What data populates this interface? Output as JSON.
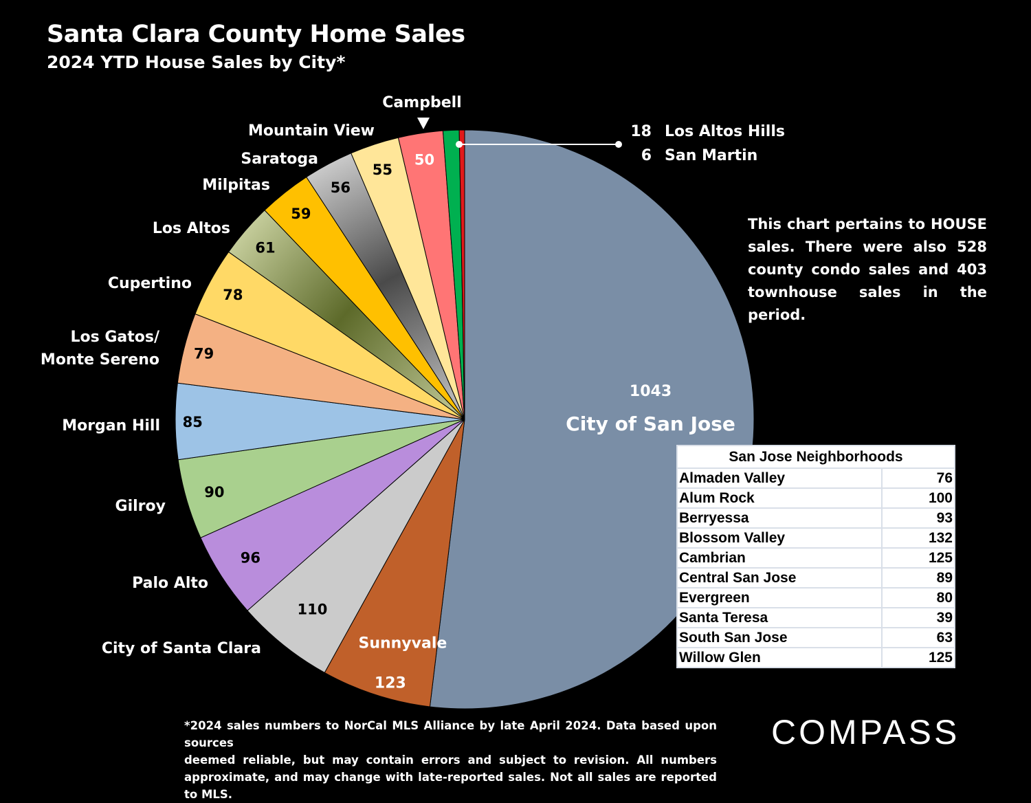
{
  "header": {
    "title": "Santa Clara County Home Sales",
    "subtitle": "2024 YTD House Sales by City*"
  },
  "chart_data": {
    "type": "pie",
    "title": "Santa Clara County Home Sales",
    "subtitle": "2024 YTD House Sales by City*",
    "slices": [
      {
        "label": "City of San Jose",
        "value": 1043,
        "color": "#7a8ea6"
      },
      {
        "label": "Sunnyvale",
        "value": 123,
        "color": "#c0602a"
      },
      {
        "label": "City of Santa Clara",
        "value": 110,
        "color": "#cbcbcb"
      },
      {
        "label": "Palo Alto",
        "value": 96,
        "color": "#b98ddc"
      },
      {
        "label": "Gilroy",
        "value": 90,
        "color": "#a9d08e"
      },
      {
        "label": "Morgan Hill",
        "value": 85,
        "color": "#9dc3e6"
      },
      {
        "label": "Los Gatos/ Monte Sereno",
        "label_lines": [
          "Los Gatos/",
          "Monte Sereno"
        ],
        "value": 79,
        "color": "#f4b183"
      },
      {
        "label": "Cupertino",
        "value": 78,
        "color": "#ffd966"
      },
      {
        "label": "Los Altos",
        "value": 61,
        "color": "#b7c08a"
      },
      {
        "label": "Milpitas",
        "value": 59,
        "color": "#ffc000"
      },
      {
        "label": "Saratoga",
        "value": 56,
        "color": "#a6a6a6"
      },
      {
        "label": "Mountain View",
        "value": 55,
        "color": "#ffe699"
      },
      {
        "label": "Campbell",
        "value": 50,
        "color": "#ff7575"
      },
      {
        "label": "Los Altos Hills",
        "value": 18,
        "color": "#00b050"
      },
      {
        "label": "San Martin",
        "value": 6,
        "color": "#e11a1a"
      }
    ]
  },
  "note": {
    "line1": "This chart pertains to HOUSE",
    "line2": "sales. There were also 528",
    "line3": "county condo sales and 403",
    "line4": "townhouse sales in the period."
  },
  "neighborhoods": {
    "title": "San Jose Neighborhoods",
    "rows": [
      {
        "name": "Almaden Valley",
        "value": "76"
      },
      {
        "name": "Alum Rock",
        "value": "100"
      },
      {
        "name": "Berryessa",
        "value": "93"
      },
      {
        "name": "Blossom Valley",
        "value": "132"
      },
      {
        "name": "Cambrian",
        "value": "125"
      },
      {
        "name": "Central San Jose",
        "value": "89"
      },
      {
        "name": "Evergreen",
        "value": "80"
      },
      {
        "name": "Santa Teresa",
        "value": "39"
      },
      {
        "name": "South San Jose",
        "value": "63"
      },
      {
        "name": "Willow Glen",
        "value": "125"
      }
    ]
  },
  "footnote": {
    "line1": "*2024 sales numbers to NorCal MLS Alliance by late April 2024. Data based upon sources",
    "line2": "deemed reliable, but may contain errors and subject to revision. All numbers",
    "line3": "approximate, and may change with late-reported sales. Not all sales are reported to MLS."
  },
  "logo": {
    "text": "COMPASS"
  }
}
